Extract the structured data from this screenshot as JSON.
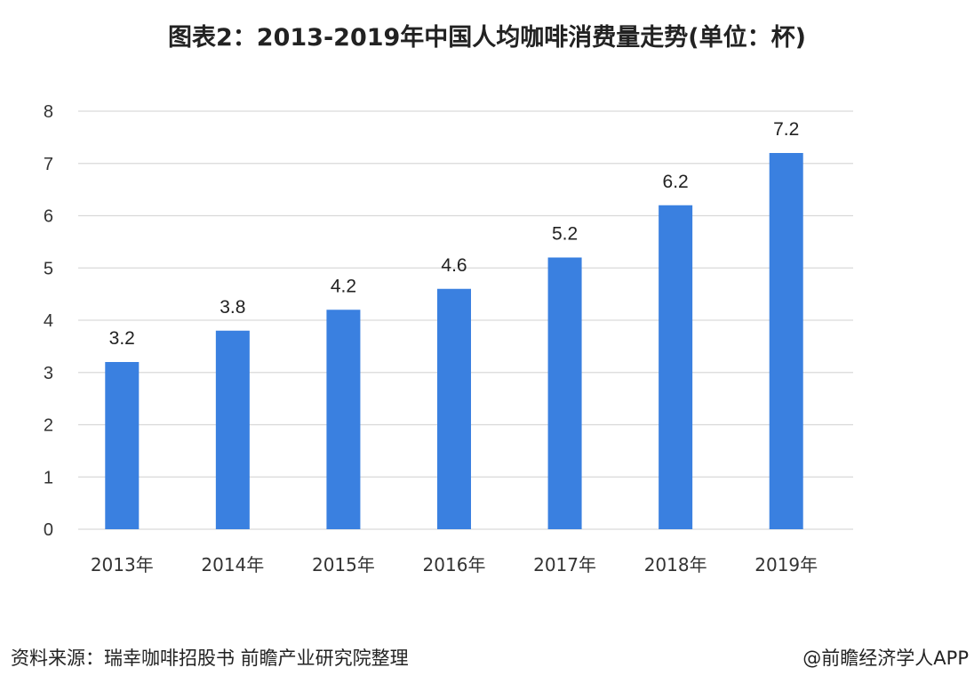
{
  "chart_data": {
    "type": "bar",
    "title": "图表2：2013-2019年中国人均咖啡消费量走势(单位：杯)",
    "categories": [
      "2013年",
      "2014年",
      "2015年",
      "2016年",
      "2017年",
      "2018年",
      "2019年"
    ],
    "values": [
      3.2,
      3.8,
      4.2,
      4.6,
      5.2,
      6.2,
      7.2
    ],
    "data_labels": [
      "3.2",
      "3.8",
      "4.2",
      "4.6",
      "5.2",
      "6.2",
      "7.2"
    ],
    "yticks": [
      "0",
      "1",
      "2",
      "3",
      "4",
      "5",
      "6",
      "7",
      "8"
    ],
    "ylim": [
      0,
      8
    ],
    "grid": true,
    "bar_color": "#3a80e0"
  },
  "footer": {
    "source": "资料来源：瑞幸咖啡招股书 前瞻产业研究院整理",
    "credit": "@前瞻经济学人APP"
  }
}
